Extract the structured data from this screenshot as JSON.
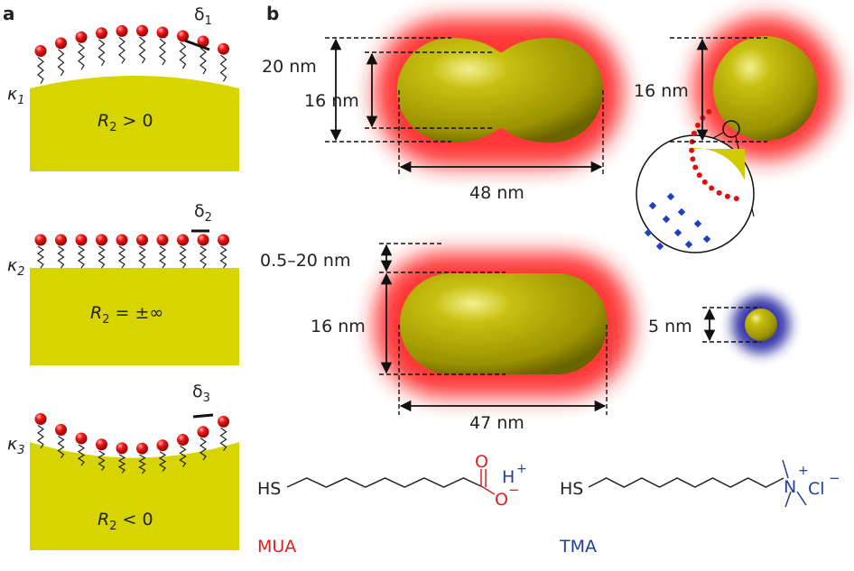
{
  "panels": {
    "a": "a",
    "b": "b"
  },
  "panel_a": {
    "rows": [
      {
        "kappa": "κ",
        "kappa_sub": "1",
        "delta": "δ",
        "delta_sub": "1",
        "r_label": "R",
        "r_sub": "2",
        "r_rel": " > 0",
        "curvature": "convex"
      },
      {
        "kappa": "κ",
        "kappa_sub": "2",
        "delta": "δ",
        "delta_sub": "2",
        "r_label": "R",
        "r_sub": "2",
        "r_rel": " = ±∞",
        "curvature": "flat"
      },
      {
        "kappa": "κ",
        "kappa_sub": "3",
        "delta": "δ",
        "delta_sub": "3",
        "r_label": "R",
        "r_sub": "2",
        "r_rel": " < 0",
        "curvature": "concave"
      }
    ],
    "colors": {
      "substrate": "#d8d400",
      "head": "#e01010"
    }
  },
  "panel_b": {
    "dumbbell": {
      "outer": "20 nm",
      "inner": "16 nm",
      "length": "48 nm"
    },
    "sphere": {
      "diameter": "16 nm"
    },
    "rod": {
      "shell": "0.5–20 nm",
      "diameter": "16 nm",
      "length": "47 nm"
    },
    "small_sphere": {
      "diameter": "5 nm"
    },
    "colors": {
      "particle": "#b8b000",
      "mua_glow": "#ff0000",
      "tma_glow": "#2020a0"
    }
  },
  "molecules": {
    "mua": {
      "thiol": "HS",
      "o_top": "O",
      "o_bottom": "O",
      "minus": "−",
      "h": "H",
      "plus": "+",
      "name": "MUA",
      "color": "#e02020"
    },
    "tma": {
      "thiol": "HS",
      "n": "N",
      "plus": "+",
      "cl": "Cl",
      "minus": "−",
      "name": "TMA",
      "color": "#2040a0"
    }
  }
}
